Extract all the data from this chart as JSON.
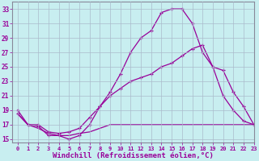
{
  "title": "",
  "xlabel": "Windchill (Refroidissement éolien,°C)",
  "ylabel": "",
  "bg_color": "#c8eef0",
  "line_color": "#990099",
  "grid_color": "#aabbcc",
  "xlim": [
    -0.5,
    23
  ],
  "ylim": [
    14.5,
    34
  ],
  "xticks": [
    0,
    1,
    2,
    3,
    4,
    5,
    6,
    7,
    8,
    9,
    10,
    11,
    12,
    13,
    14,
    15,
    16,
    17,
    18,
    19,
    20,
    21,
    22,
    23
  ],
  "yticks": [
    15,
    17,
    19,
    21,
    23,
    25,
    27,
    29,
    31,
    33
  ],
  "curve1_x": [
    0,
    1,
    2,
    3,
    4,
    5,
    6,
    7,
    8,
    9,
    10,
    11,
    12,
    13,
    14,
    15,
    16,
    17,
    18,
    19,
    20,
    21,
    22,
    23
  ],
  "curve1_y": [
    19,
    17,
    16.8,
    15.5,
    15.5,
    15,
    15.5,
    17,
    19.5,
    21.5,
    24,
    27,
    29,
    30,
    32.5,
    33,
    33,
    31,
    27,
    25,
    24.5,
    21.5,
    19.5,
    17
  ],
  "curve2_x": [
    0,
    1,
    2,
    3,
    4,
    5,
    6,
    7,
    8,
    9,
    10,
    11,
    12,
    13,
    14,
    15,
    16,
    17,
    18,
    19,
    20,
    21,
    22,
    23
  ],
  "curve2_y": [
    18.5,
    17,
    17,
    16,
    15.8,
    16,
    16.5,
    18,
    19.5,
    21,
    22,
    23,
    23.5,
    24,
    25,
    25.5,
    26.5,
    27.5,
    28,
    25,
    21,
    19,
    17.5,
    17
  ],
  "curve3_x": [
    0,
    1,
    2,
    3,
    4,
    5,
    6,
    7,
    8,
    9,
    10,
    11,
    12,
    13,
    14,
    15,
    16,
    17,
    18,
    19,
    20,
    21,
    22,
    23
  ],
  "curve3_y": [
    18.5,
    17,
    16.5,
    15.8,
    15.5,
    15.5,
    15.8,
    16,
    16.5,
    17,
    17,
    17,
    17,
    17,
    17,
    17,
    17,
    17,
    17,
    17,
    17,
    17,
    17,
    17
  ]
}
